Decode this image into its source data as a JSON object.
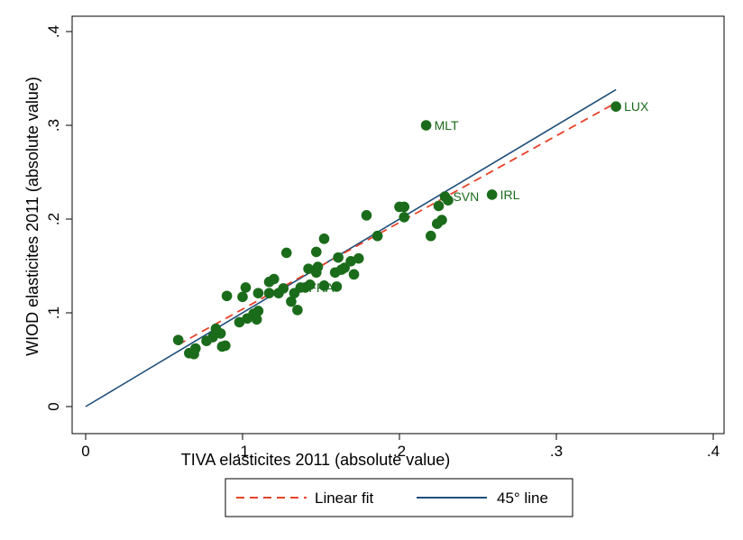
{
  "chart_data": {
    "type": "scatter",
    "xlabel": "TIVA elasticites 2011 (absolute value)",
    "ylabel": "WIOD elasticites 2011 (absolute value)",
    "xlim": [
      0,
      0.4
    ],
    "ylim": [
      0,
      0.4
    ],
    "x_ticks": [
      "0",
      ".1",
      ".2",
      ".3",
      ".4"
    ],
    "y_ticks": [
      "0",
      ".1",
      ".2",
      ".3",
      ".4"
    ],
    "grid": false,
    "legend_position": "bottom",
    "colors": {
      "points": "#1a6b1a",
      "linear_fit": "#e8432a",
      "line_45": "#1f4e79",
      "labels": "#1a6b1a"
    },
    "points": [
      {
        "x": 0.059,
        "y": 0.071,
        "label": ""
      },
      {
        "x": 0.066,
        "y": 0.057,
        "label": ""
      },
      {
        "x": 0.069,
        "y": 0.056,
        "label": ""
      },
      {
        "x": 0.07,
        "y": 0.062,
        "label": ""
      },
      {
        "x": 0.077,
        "y": 0.07,
        "label": ""
      },
      {
        "x": 0.081,
        "y": 0.074,
        "label": ""
      },
      {
        "x": 0.083,
        "y": 0.083,
        "label": ""
      },
      {
        "x": 0.086,
        "y": 0.078,
        "label": ""
      },
      {
        "x": 0.087,
        "y": 0.064,
        "label": ""
      },
      {
        "x": 0.089,
        "y": 0.065,
        "label": ""
      },
      {
        "x": 0.09,
        "y": 0.118,
        "label": ""
      },
      {
        "x": 0.098,
        "y": 0.09,
        "label": ""
      },
      {
        "x": 0.1,
        "y": 0.117,
        "label": ""
      },
      {
        "x": 0.102,
        "y": 0.127,
        "label": ""
      },
      {
        "x": 0.103,
        "y": 0.094,
        "label": ""
      },
      {
        "x": 0.107,
        "y": 0.099,
        "label": ""
      },
      {
        "x": 0.109,
        "y": 0.093,
        "label": ""
      },
      {
        "x": 0.11,
        "y": 0.102,
        "label": ""
      },
      {
        "x": 0.11,
        "y": 0.121,
        "label": ""
      },
      {
        "x": 0.117,
        "y": 0.133,
        "label": ""
      },
      {
        "x": 0.117,
        "y": 0.121,
        "label": ""
      },
      {
        "x": 0.12,
        "y": 0.136,
        "label": ""
      },
      {
        "x": 0.123,
        "y": 0.121,
        "label": ""
      },
      {
        "x": 0.126,
        "y": 0.126,
        "label": ""
      },
      {
        "x": 0.128,
        "y": 0.164,
        "label": ""
      },
      {
        "x": 0.131,
        "y": 0.112,
        "label": ""
      },
      {
        "x": 0.133,
        "y": 0.121,
        "label": ""
      },
      {
        "x": 0.135,
        "y": 0.103,
        "label": ""
      },
      {
        "x": 0.137,
        "y": 0.127,
        "label": "FRA"
      },
      {
        "x": 0.14,
        "y": 0.127,
        "label": ""
      },
      {
        "x": 0.142,
        "y": 0.147,
        "label": ""
      },
      {
        "x": 0.143,
        "y": 0.13,
        "label": ""
      },
      {
        "x": 0.147,
        "y": 0.165,
        "label": ""
      },
      {
        "x": 0.147,
        "y": 0.143,
        "label": ""
      },
      {
        "x": 0.148,
        "y": 0.149,
        "label": ""
      },
      {
        "x": 0.152,
        "y": 0.179,
        "label": ""
      },
      {
        "x": 0.152,
        "y": 0.129,
        "label": ""
      },
      {
        "x": 0.159,
        "y": 0.143,
        "label": ""
      },
      {
        "x": 0.16,
        "y": 0.128,
        "label": ""
      },
      {
        "x": 0.161,
        "y": 0.159,
        "label": ""
      },
      {
        "x": 0.163,
        "y": 0.146,
        "label": ""
      },
      {
        "x": 0.165,
        "y": 0.148,
        "label": ""
      },
      {
        "x": 0.169,
        "y": 0.155,
        "label": ""
      },
      {
        "x": 0.171,
        "y": 0.141,
        "label": ""
      },
      {
        "x": 0.174,
        "y": 0.158,
        "label": ""
      },
      {
        "x": 0.179,
        "y": 0.204,
        "label": ""
      },
      {
        "x": 0.186,
        "y": 0.182,
        "label": ""
      },
      {
        "x": 0.2,
        "y": 0.213,
        "label": ""
      },
      {
        "x": 0.203,
        "y": 0.213,
        "label": ""
      },
      {
        "x": 0.203,
        "y": 0.202,
        "label": ""
      },
      {
        "x": 0.217,
        "y": 0.3,
        "label": "MLT"
      },
      {
        "x": 0.22,
        "y": 0.182,
        "label": ""
      },
      {
        "x": 0.224,
        "y": 0.195,
        "label": ""
      },
      {
        "x": 0.225,
        "y": 0.214,
        "label": ""
      },
      {
        "x": 0.227,
        "y": 0.199,
        "label": ""
      },
      {
        "x": 0.229,
        "y": 0.224,
        "label": "SVN"
      },
      {
        "x": 0.231,
        "y": 0.22,
        "label": ""
      },
      {
        "x": 0.259,
        "y": 0.226,
        "label": "IRL"
      },
      {
        "x": 0.338,
        "y": 0.32,
        "label": "LUX"
      }
    ],
    "series": [
      {
        "name": "Linear fit",
        "x": [
          0.059,
          0.338
        ],
        "y": [
          0.066,
          0.324
        ]
      },
      {
        "name": "45° line",
        "x": [
          0,
          0.338
        ],
        "y": [
          0,
          0.338
        ]
      }
    ]
  },
  "legend": {
    "items": [
      {
        "label": "Linear fit"
      },
      {
        "label": "45° line"
      }
    ]
  }
}
